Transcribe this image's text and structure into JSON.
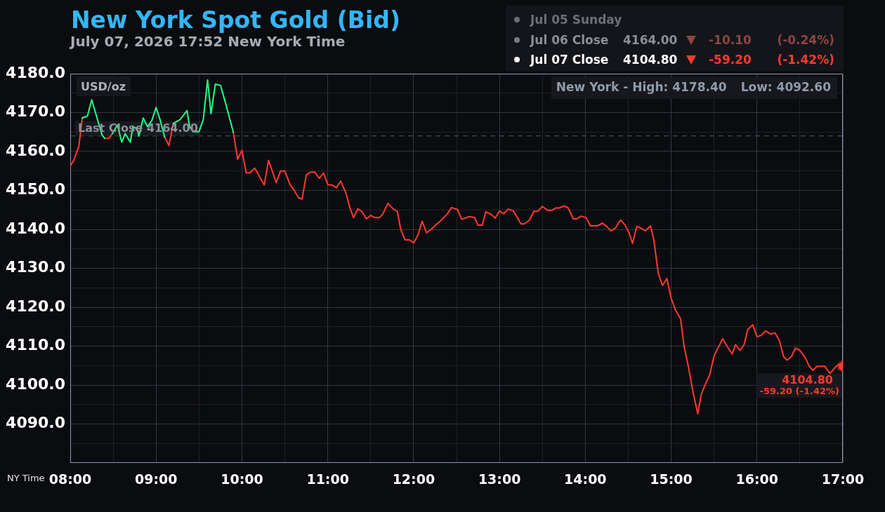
{
  "chart_data": {
    "type": "line",
    "title": "New York Spot Gold (Bid)",
    "subtitle": "July 07, 2026 17:52 New York Time",
    "xlabel": "NY Time",
    "ylabel": "USD/oz",
    "annotations": [
      "Jul 05 Sunday",
      "Jul 06 Close",
      "4164.00",
      "-10.10",
      "(-0.24%)",
      "Jul 07 Close",
      "4104.80",
      "-59.20",
      "(-1.42%)",
      "New York - High: 4178.40",
      "Low: 4092.60",
      {
        "text": "4104.80",
        "x": 17,
        "y": 4104.8
      },
      {
        "text": "-59.20 (-1.42%)",
        "x": 17,
        "y": 4104.8
      }
    ],
    "series": [
      {
        "color": "#22ff88",
        "x": [
          8.14,
          8.2,
          8.25,
          8.31,
          8.37,
          8.4,
          8.45,
          8.49,
          8.55,
          8.6,
          8.64,
          8.7,
          8.73,
          8.78,
          8.8,
          8.85,
          8.9,
          8.95,
          9.0,
          9.05,
          9.1,
          9.15,
          9.2,
          9.28,
          9.36,
          9.39,
          9.43,
          9.5,
          9.55,
          9.6,
          9.64,
          9.69,
          9.75,
          9.81,
          9.9
        ],
        "values": [
          4168.6,
          4169.1,
          4173.3,
          4168.8,
          4164.3,
          4163.4,
          null,
          4164.6,
          4166.8,
          4162.4,
          4164.6,
          4162.4,
          4166.4,
          4165.8,
          4163.9,
          4168.6,
          4166.4,
          4167.9,
          4171.3,
          4167.9,
          4163.7,
          null,
          4167.2,
          4168.2,
          4170.5,
          4166.4,
          4165.1,
          4165.1,
          4168.2,
          4178.4,
          4169.7,
          4177.3,
          4177.0,
          4172.4,
          4164.9
        ]
      },
      {
        "color": "#ff3a2f",
        "x": [
          8.0,
          8.04,
          8.1,
          8.14,
          8.25,
          8.4,
          8.45,
          8.49,
          8.7,
          9.1,
          9.15,
          9.2,
          9.5,
          9.9,
          9.95,
          10.0,
          10.05,
          10.09,
          10.15,
          10.26,
          10.31,
          10.4,
          10.45,
          10.5,
          10.56,
          10.6,
          10.66,
          10.7,
          10.75,
          10.8,
          10.85,
          10.9,
          10.95,
          11.0,
          11.05,
          11.1,
          11.15,
          11.21,
          11.26,
          11.3,
          11.35,
          11.4,
          11.45,
          11.5,
          11.55,
          11.6,
          11.64,
          11.7,
          11.76,
          11.81,
          11.85,
          11.9,
          11.95,
          12.0,
          12.05,
          12.1,
          12.15,
          12.2,
          12.26,
          12.31,
          12.39,
          12.44,
          12.51,
          12.56,
          12.65,
          12.71,
          12.75,
          12.8,
          12.84,
          12.9,
          12.95,
          13.0,
          13.05,
          13.1,
          13.16,
          13.25,
          13.29,
          13.35,
          13.4,
          13.45,
          13.5,
          13.56,
          13.61,
          13.66,
          13.7,
          13.75,
          13.8,
          13.86,
          13.9,
          13.95,
          14.01,
          14.06,
          14.14,
          14.2,
          14.25,
          14.3,
          14.35,
          14.41,
          14.46,
          14.51,
          14.55,
          14.6,
          14.65,
          14.7,
          14.76,
          14.8,
          14.85,
          14.9,
          14.95,
          15.0,
          15.05,
          15.11,
          15.15,
          15.2,
          15.26,
          15.31,
          15.35,
          15.4,
          15.45,
          15.5,
          15.54,
          15.6,
          15.65,
          15.71,
          15.75,
          15.8,
          15.85,
          15.89,
          15.95,
          16.0,
          16.05,
          16.1,
          16.16,
          16.21,
          16.26,
          16.31,
          16.35,
          16.4,
          16.45,
          16.5,
          16.56,
          16.61,
          16.65,
          16.7,
          16.79,
          16.85,
          16.91,
          16.95,
          17.0
        ],
        "values": [
          4156.2,
          4157.7,
          4161.3,
          4168.6,
          null,
          4163.4,
          4163.4,
          4164.6,
          null,
          4163.7,
          4161.5,
          4167.2,
          null,
          4164.9,
          4158.0,
          4160.3,
          4154.5,
          4154.5,
          4155.7,
          4151.4,
          4157.7,
          4152.0,
          4155.0,
          4155.0,
          4151.5,
          4150.3,
          4148.1,
          4147.8,
          4154.0,
          4154.7,
          4154.7,
          4153.1,
          4154.5,
          4151.5,
          4151.4,
          4150.7,
          4152.4,
          4149.4,
          4145.4,
          4143.0,
          4145.3,
          4144.5,
          4142.7,
          4143.6,
          4143.0,
          4143.0,
          4143.9,
          4146.7,
          4145.3,
          4144.6,
          4140.0,
          4137.3,
          4137.3,
          4136.5,
          4138.5,
          4142.1,
          4139.1,
          4139.9,
          4141.2,
          4142.1,
          4143.9,
          4145.6,
          4145.1,
          4142.6,
          4143.3,
          4143.0,
          4141.1,
          4141.1,
          4144.5,
          4143.9,
          4142.9,
          4144.7,
          4144.0,
          4145.2,
          4144.8,
          4141.4,
          4141.4,
          4142.4,
          4144.6,
          4144.7,
          4145.9,
          4144.9,
          4144.9,
          4145.5,
          4145.5,
          4146.0,
          4145.5,
          4142.7,
          4142.7,
          4143.4,
          4143.0,
          4140.9,
          4140.9,
          4141.6,
          4140.7,
          4139.6,
          4140.3,
          4142.4,
          4141.2,
          4139.1,
          4136.4,
          4140.8,
          4140.3,
          4139.6,
          4140.9,
          4137.1,
          4128.6,
          4125.6,
          4127.4,
          4122.3,
          4119.3,
          4117.0,
          4110.0,
          4104.8,
          4097.6,
          4092.6,
          4097.6,
          4100.3,
          4102.7,
          4107.5,
          4109.3,
          4111.9,
          4110.0,
          4108.0,
          4110.4,
          4108.9,
          4110.4,
          4114.2,
          4115.5,
          4112.4,
          4112.8,
          4113.9,
          4113.1,
          4113.4,
          4111.5,
          4107.3,
          4106.4,
          4107.3,
          4109.5,
          4108.9,
          4107.1,
          4104.8,
          4103.8,
          4104.8,
          4104.8,
          4103.0,
          4104.5,
          4105.3,
          4104.8
        ]
      },
      {
        "type": "scatter",
        "x": [
          17
        ],
        "values": [
          4104.8
        ],
        "color": "#ff3a2f",
        "marker": "circle"
      }
    ],
    "xlim": [
      8,
      17
    ],
    "ylim": [
      4080,
      4180
    ],
    "xticks": [
      {
        "value": 8,
        "label": "08:00"
      },
      {
        "value": 8.5,
        "label": null
      },
      {
        "value": 9,
        "label": "09:00"
      },
      {
        "value": 9.5,
        "label": null
      },
      {
        "value": 10,
        "label": "10:00"
      },
      {
        "value": 10.5,
        "label": null
      },
      {
        "value": 11,
        "label": "11:00"
      },
      {
        "value": 11.5,
        "label": null
      },
      {
        "value": 12,
        "label": "12:00"
      },
      {
        "value": 12.5,
        "label": null
      },
      {
        "value": 13,
        "label": "13:00"
      },
      {
        "value": 13.5,
        "label": null
      },
      {
        "value": 14,
        "label": "14:00"
      },
      {
        "value": 14.5,
        "label": null
      },
      {
        "value": 15,
        "label": "15:00"
      },
      {
        "value": 15.5,
        "label": null
      },
      {
        "value": 16,
        "label": "16:00"
      },
      {
        "value": 16.5,
        "label": null
      },
      {
        "value": 17,
        "label": "17:00"
      }
    ],
    "yticks": [
      {
        "value": 4085,
        "label": null
      },
      {
        "value": 4090,
        "label": "4090.0"
      },
      {
        "value": 4095,
        "label": null
      },
      {
        "value": 4100,
        "label": "4100.0"
      },
      {
        "value": 4105,
        "label": null
      },
      {
        "value": 4110,
        "label": "4110.0"
      },
      {
        "value": 4115,
        "label": null
      },
      {
        "value": 4120,
        "label": "4120.0"
      },
      {
        "value": 4125,
        "label": null
      },
      {
        "value": 4130,
        "label": "4130.0"
      },
      {
        "value": 4135,
        "label": null
      },
      {
        "value": 4140,
        "label": "4140.0"
      },
      {
        "value": 4145,
        "label": null
      },
      {
        "value": 4150,
        "label": "4150.0"
      },
      {
        "value": 4155,
        "label": null
      },
      {
        "value": 4160,
        "label": "4160.0"
      },
      {
        "value": 4165,
        "label": null
      },
      {
        "value": 4170,
        "label": "4170.0"
      },
      {
        "value": 4175,
        "label": null
      },
      {
        "value": 4180,
        "label": "4180.0"
      }
    ],
    "grid": true,
    "marker": "none",
    "ref_lines": [
      {
        "axis": "y",
        "value": 4164,
        "label": "Last Close 4164.00",
        "color": "#5c5f68",
        "line_style": "dashed"
      }
    ]
  }
}
